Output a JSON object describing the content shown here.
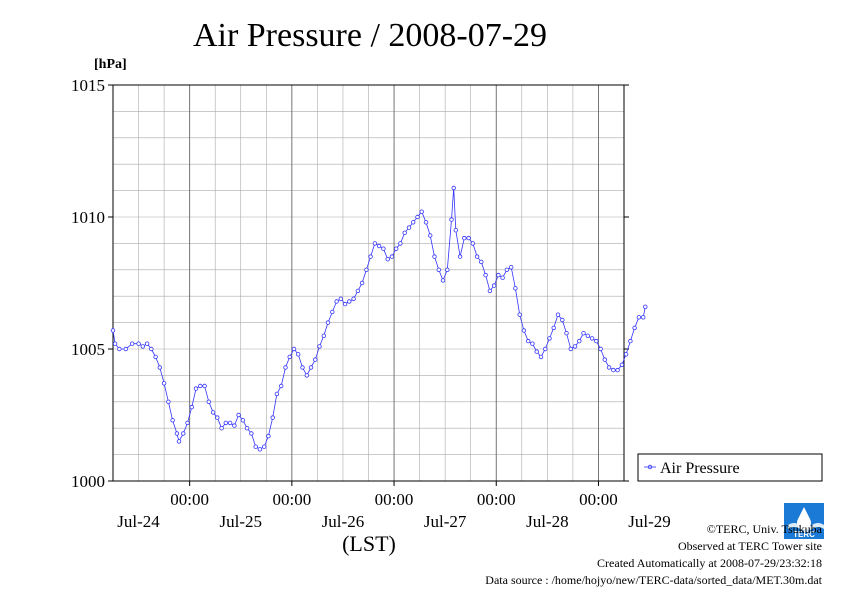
{
  "chart_data": {
    "type": "line",
    "title": "Air Pressure / 2008-07-29",
    "ylabel": "[hPa]",
    "xlabel": "(LST)",
    "ylim": [
      1000,
      1015
    ],
    "y_ticks": [
      "1015",
      "1010",
      "1005",
      "1000"
    ],
    "x_unit": "hours since Jul-24 00:00",
    "xlim": [
      -18,
      102
    ],
    "x_tick_labels": [
      "00:00",
      "00:00",
      "00:00",
      "00:00",
      "00:00"
    ],
    "day_labels": [
      "Jul-24",
      "Jul-25",
      "Jul-26",
      "Jul-27",
      "Jul-28",
      "Jul-29"
    ],
    "grid": true,
    "legend": "right",
    "series": [
      {
        "name": "Air Pressure",
        "color": "#3333ff",
        "points": [
          [
            -18,
            1005.7
          ],
          [
            -17.5,
            1005.2
          ],
          [
            -16.5,
            1005.0
          ],
          [
            -15,
            1005.0
          ],
          [
            -13.5,
            1005.2
          ],
          [
            -12,
            1005.2
          ],
          [
            -11,
            1005.1
          ],
          [
            -10,
            1005.2
          ],
          [
            -9,
            1005.0
          ],
          [
            -8,
            1004.7
          ],
          [
            -7,
            1004.3
          ],
          [
            -6,
            1003.7
          ],
          [
            -5,
            1003.0
          ],
          [
            -4,
            1002.3
          ],
          [
            -3,
            1001.8
          ],
          [
            -2.5,
            1001.5
          ],
          [
            -1.5,
            1001.8
          ],
          [
            -0.5,
            1002.2
          ],
          [
            0.5,
            1002.8
          ],
          [
            1.5,
            1003.5
          ],
          [
            2.5,
            1003.6
          ],
          [
            3.5,
            1003.6
          ],
          [
            4.5,
            1003.0
          ],
          [
            5.5,
            1002.6
          ],
          [
            6.5,
            1002.4
          ],
          [
            7.5,
            1002.0
          ],
          [
            8.5,
            1002.2
          ],
          [
            9.5,
            1002.2
          ],
          [
            10.5,
            1002.1
          ],
          [
            11.5,
            1002.5
          ],
          [
            12.5,
            1002.3
          ],
          [
            13.5,
            1002.0
          ],
          [
            14.5,
            1001.8
          ],
          [
            15.5,
            1001.3
          ],
          [
            16.5,
            1001.2
          ],
          [
            17.5,
            1001.3
          ],
          [
            18.5,
            1001.7
          ],
          [
            19.5,
            1002.4
          ],
          [
            20.5,
            1003.3
          ],
          [
            21.5,
            1003.6
          ],
          [
            22.5,
            1004.3
          ],
          [
            23.5,
            1004.7
          ],
          [
            24.5,
            1005.0
          ],
          [
            25.5,
            1004.8
          ],
          [
            26.5,
            1004.3
          ],
          [
            27.5,
            1004.0
          ],
          [
            28.5,
            1004.3
          ],
          [
            29.5,
            1004.6
          ],
          [
            30.5,
            1005.1
          ],
          [
            31.5,
            1005.5
          ],
          [
            32.5,
            1006.0
          ],
          [
            33.5,
            1006.4
          ],
          [
            34.5,
            1006.8
          ],
          [
            35.5,
            1006.9
          ],
          [
            36.5,
            1006.7
          ],
          [
            37.5,
            1006.8
          ],
          [
            38.5,
            1006.9
          ],
          [
            39.5,
            1007.2
          ],
          [
            40.5,
            1007.5
          ],
          [
            41.5,
            1008.0
          ],
          [
            42.5,
            1008.5
          ],
          [
            43.5,
            1009.0
          ],
          [
            44.5,
            1008.9
          ],
          [
            45.5,
            1008.8
          ],
          [
            46.5,
            1008.4
          ],
          [
            47.5,
            1008.5
          ],
          [
            48.5,
            1008.8
          ],
          [
            49.5,
            1009.0
          ],
          [
            50.5,
            1009.4
          ],
          [
            51.5,
            1009.6
          ],
          [
            52.5,
            1009.8
          ],
          [
            53.5,
            1010.0
          ],
          [
            54.5,
            1010.2
          ],
          [
            55.5,
            1009.8
          ],
          [
            56.5,
            1009.3
          ],
          [
            57.5,
            1008.5
          ],
          [
            58.5,
            1008.0
          ],
          [
            59.5,
            1007.6
          ],
          [
            60.5,
            1008.0
          ],
          [
            61.5,
            1009.9
          ],
          [
            62,
            1011.1
          ],
          [
            62.5,
            1009.5
          ],
          [
            63.5,
            1008.5
          ],
          [
            64.5,
            1009.2
          ],
          [
            65.5,
            1009.2
          ],
          [
            66.5,
            1009.0
          ],
          [
            67.5,
            1008.5
          ],
          [
            68.5,
            1008.3
          ],
          [
            69.5,
            1007.8
          ],
          [
            70.5,
            1007.2
          ],
          [
            71.5,
            1007.4
          ],
          [
            72.5,
            1007.8
          ],
          [
            73.5,
            1007.7
          ],
          [
            74.5,
            1008.0
          ],
          [
            75.5,
            1008.1
          ],
          [
            76.5,
            1007.3
          ],
          [
            77.5,
            1006.3
          ],
          [
            78.5,
            1005.7
          ],
          [
            79.5,
            1005.3
          ],
          [
            80.5,
            1005.2
          ],
          [
            81.5,
            1004.9
          ],
          [
            82.5,
            1004.7
          ],
          [
            83.5,
            1005.0
          ],
          [
            84.5,
            1005.4
          ],
          [
            85.5,
            1005.8
          ],
          [
            86.5,
            1006.3
          ],
          [
            87.5,
            1006.1
          ],
          [
            88.5,
            1005.6
          ],
          [
            89.5,
            1005.0
          ],
          [
            90.5,
            1005.1
          ],
          [
            91.5,
            1005.3
          ],
          [
            92.5,
            1005.6
          ],
          [
            93.5,
            1005.5
          ],
          [
            94.5,
            1005.4
          ],
          [
            95.5,
            1005.3
          ],
          [
            96.5,
            1005.0
          ],
          [
            97.5,
            1004.6
          ],
          [
            98.5,
            1004.3
          ],
          [
            99.5,
            1004.2
          ],
          [
            100.5,
            1004.2
          ],
          [
            101.5,
            1004.4
          ],
          [
            102.5,
            1004.8
          ],
          [
            103.5,
            1005.3
          ],
          [
            104.5,
            1005.8
          ],
          [
            105.5,
            1006.2
          ],
          [
            106.5,
            1006.2
          ],
          [
            107,
            1006.6
          ]
        ]
      }
    ]
  },
  "legend": {
    "label": "Air Pressure"
  },
  "footer": {
    "line1": "©TERC, Univ. Tsukuba",
    "line2": "Observed at TERC Tower site",
    "line3": "Created Automatically at 2008-07-29/23:32:18",
    "line4": "Data source : /home/hojyo/new/TERC-data/sorted_data/MET.30m.dat"
  },
  "logo": {
    "text": "TERC",
    "color": "#1a7ad6"
  }
}
